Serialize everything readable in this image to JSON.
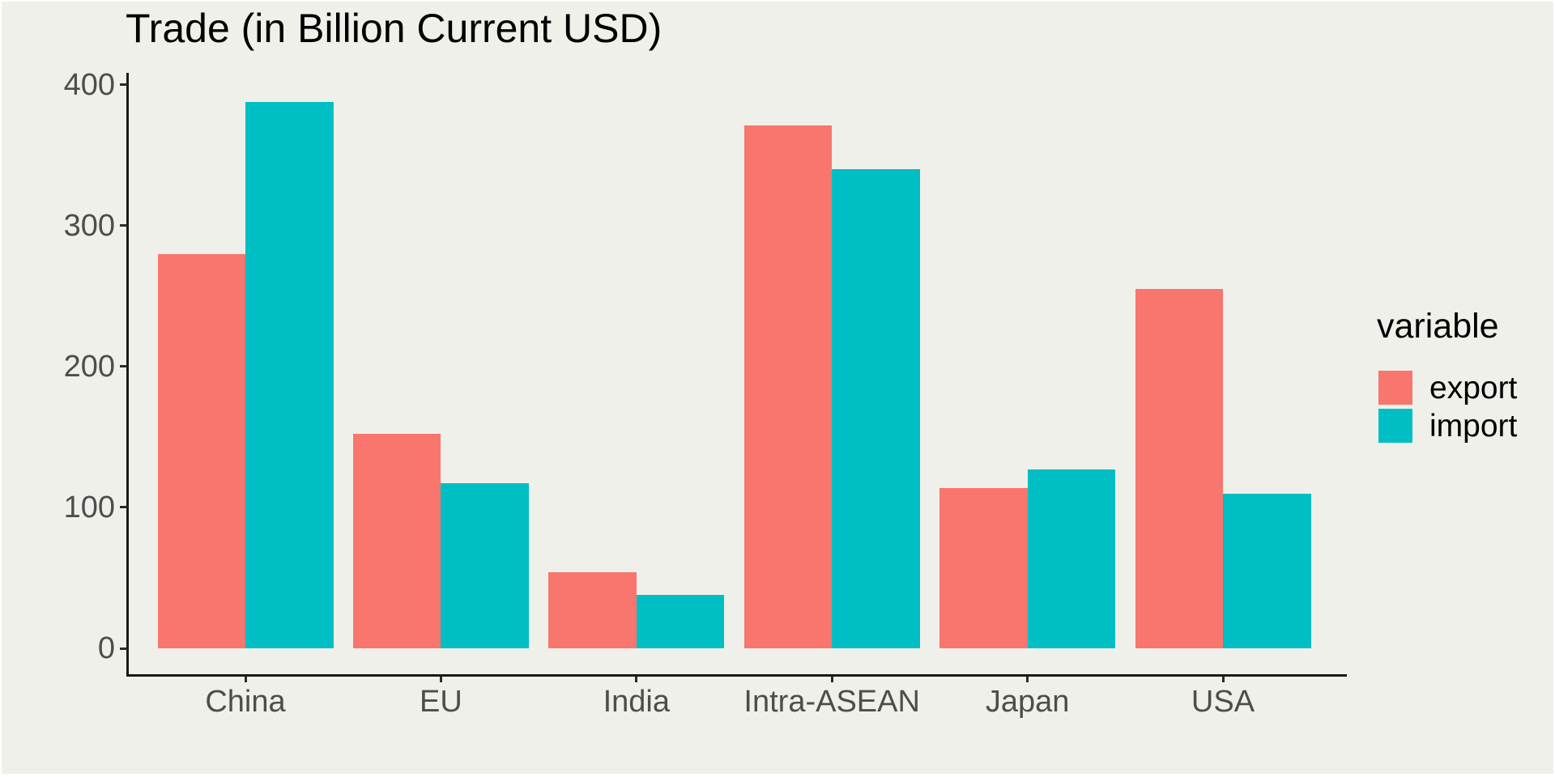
{
  "figure": {
    "background": "#F0F0EA",
    "frame_color": "#FFFFFF"
  },
  "chart_data": {
    "type": "bar",
    "title": "Trade (in Billion Current USD)",
    "categories": [
      "China",
      "EU",
      "India",
      "Intra-ASEAN",
      "Japan",
      "USA"
    ],
    "series": [
      {
        "name": "export",
        "color": "#F8766D",
        "values": [
          280,
          152,
          54,
          371,
          114,
          255
        ]
      },
      {
        "name": "import",
        "color": "#00BFC4",
        "values": [
          388,
          117,
          38,
          340,
          127,
          110
        ]
      }
    ],
    "xlabel": "",
    "ylabel": "",
    "ylim": [
      0,
      400
    ],
    "yticks": [
      0,
      100,
      200,
      300,
      400
    ],
    "grid": false,
    "legend_title": "variable",
    "legend_position": "right",
    "bar_layout": "grouped",
    "axis_color": "#1A1A1A",
    "tick_color": "#2B2B2B",
    "tick_label_color": "#4D4D4D",
    "title_color": "#000000"
  }
}
